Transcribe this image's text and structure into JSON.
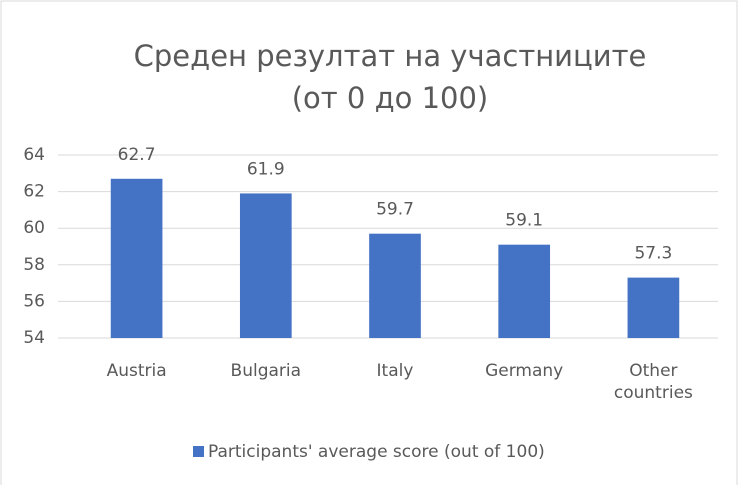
{
  "chart_data": {
    "type": "bar",
    "title": [
      "Среден резултат на участниците",
      "(от 0 до 100)"
    ],
    "categories": [
      "Austria",
      "Bulgaria",
      "Italy",
      "Germany",
      "Other countries"
    ],
    "series": [
      {
        "name": "Participants' average score (out of 100)",
        "color": "#4472c4",
        "values": [
          62.7,
          61.9,
          59.7,
          59.1,
          57.3
        ]
      }
    ],
    "ylim": [
      54,
      64
    ],
    "yticks": [
      54,
      56,
      58,
      60,
      62,
      64
    ],
    "grid": true,
    "legend": "bottom"
  }
}
